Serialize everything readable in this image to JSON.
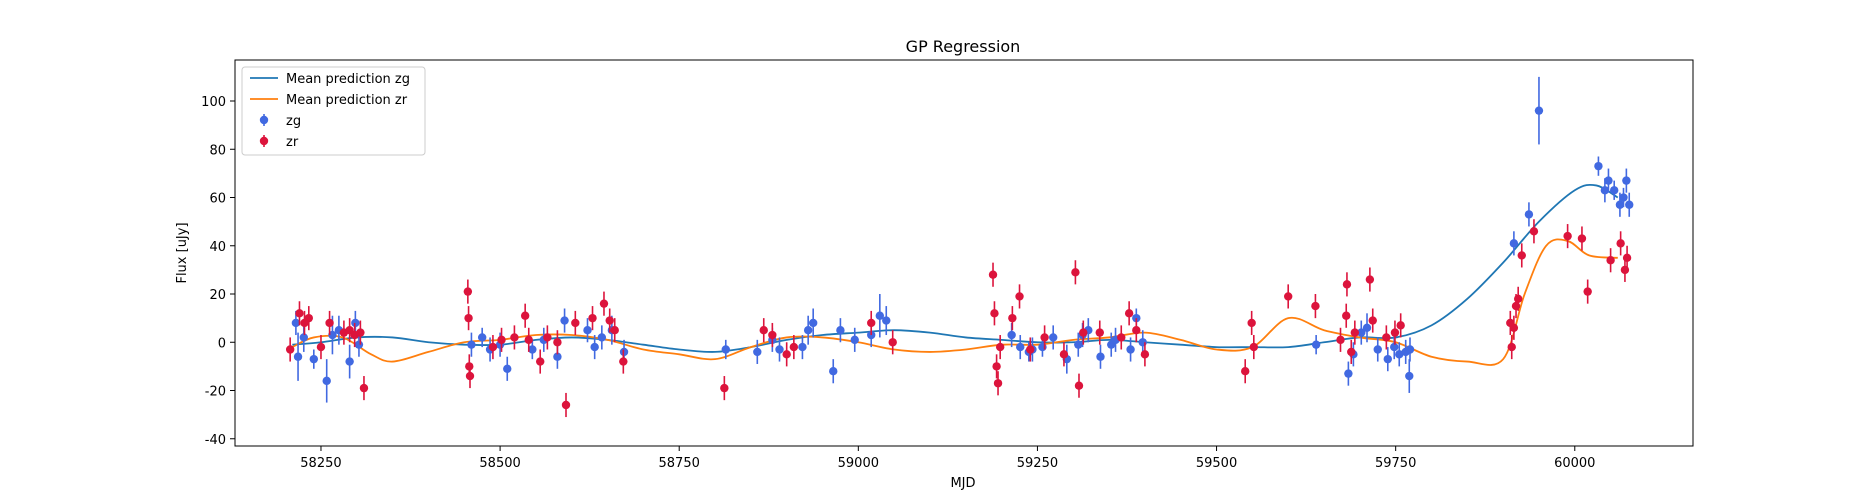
{
  "chart_data": {
    "type": "scatter",
    "title": "GP Regression",
    "xlabel": "MJD",
    "ylabel": "Flux [uJy]",
    "xlim": [
      58130,
      60165
    ],
    "ylim": [
      -43,
      117
    ],
    "xticks": [
      58250,
      58500,
      58750,
      59000,
      59250,
      59500,
      59750,
      60000
    ],
    "yticks": [
      -40,
      -20,
      0,
      20,
      40,
      60,
      80,
      100
    ],
    "grid": false,
    "legend": {
      "placement": "top-left",
      "entries": [
        {
          "label": "Mean prediction zg",
          "kind": "line",
          "color": "#1f77b4"
        },
        {
          "label": "Mean prediction zr",
          "kind": "line",
          "color": "#ff7f0e"
        },
        {
          "label": "zg",
          "kind": "errorbar",
          "color": "#4169e1"
        },
        {
          "label": "zr",
          "kind": "errorbar",
          "color": "#dc143c"
        }
      ]
    },
    "series": [
      {
        "name": "Mean prediction zg",
        "kind": "line",
        "color": "#1f77b4",
        "x": [
          58210,
          58250,
          58300,
          58350,
          58400,
          58450,
          58500,
          58550,
          58600,
          58650,
          58700,
          58750,
          58800,
          58850,
          58900,
          58950,
          59000,
          59050,
          59100,
          59150,
          59200,
          59250,
          59300,
          59350,
          59400,
          59450,
          59500,
          59550,
          59600,
          59650,
          59700,
          59750,
          59800,
          59850,
          59900,
          59950,
          60000,
          60030,
          60060
        ],
        "y": [
          -1,
          0,
          2,
          2,
          0,
          -1,
          -1,
          1,
          2,
          1,
          -1,
          -3,
          -4,
          -2,
          1,
          3,
          4,
          5,
          4,
          2,
          1,
          0,
          0,
          1,
          0,
          -1,
          -2,
          -2,
          -2,
          0,
          2,
          2,
          7,
          18,
          33,
          50,
          63,
          65,
          60
        ]
      },
      {
        "name": "Mean prediction zr",
        "kind": "line",
        "color": "#ff7f0e",
        "x": [
          58210,
          58240,
          58280,
          58320,
          58350,
          58400,
          58450,
          58500,
          58550,
          58600,
          58650,
          58700,
          58750,
          58800,
          58850,
          58900,
          58950,
          59000,
          59050,
          59100,
          59150,
          59200,
          59250,
          59300,
          59350,
          59400,
          59450,
          59500,
          59550,
          59600,
          59650,
          59700,
          59750,
          59800,
          59850,
          59900,
          59930,
          59960,
          59990,
          60020,
          60060
        ],
        "y": [
          -2,
          2,
          2,
          -5,
          -8,
          -4,
          0,
          1,
          3,
          3,
          1,
          -3,
          -5,
          -7,
          -2,
          2,
          2,
          0,
          -3,
          -4,
          -3,
          -1,
          -1,
          1,
          2,
          4,
          1,
          -3,
          -2,
          10,
          5,
          2,
          0,
          -6,
          -8,
          -7,
          20,
          40,
          42,
          36,
          35
        ]
      },
      {
        "name": "zg",
        "kind": "errorbar",
        "color": "#4169e1",
        "x": [
          58215,
          58218,
          58226,
          58240,
          58258,
          58266,
          58275,
          58290,
          58298,
          58303,
          58460,
          58475,
          58486,
          58500,
          58510,
          58545,
          58561,
          58580,
          58590,
          58622,
          58632,
          58642,
          58656,
          58673,
          58815,
          58859,
          58880,
          58890,
          58922,
          58930,
          58937,
          58965,
          58975,
          58995,
          59018,
          59030,
          59039,
          59214,
          59226,
          59238,
          59243,
          59257,
          59272,
          59291,
          59307,
          59313,
          59321,
          59338,
          59353,
          59359,
          59380,
          59388,
          59397,
          59639,
          59684,
          59691,
          59702,
          59710,
          59725,
          59739,
          59748,
          59755,
          59764,
          59769,
          59770,
          59915,
          59936,
          60033,
          60042,
          60047,
          60055,
          60063,
          60068,
          60072,
          60076,
          59950
        ],
        "y": [
          8,
          -6,
          2,
          -7,
          -16,
          3,
          5,
          -8,
          8,
          -1,
          -1,
          2,
          -3,
          -1,
          -11,
          -3,
          1,
          -6,
          9,
          5,
          -2,
          2,
          5,
          -4,
          -3,
          -4,
          1,
          -3,
          -2,
          5,
          8,
          -12,
          5,
          1,
          3,
          11,
          9,
          3,
          -2,
          -4,
          -3,
          -2,
          2,
          -7,
          -1,
          3,
          5,
          -6,
          -1,
          1,
          -3,
          10,
          0,
          -1,
          -13,
          -5,
          4,
          6,
          -3,
          -7,
          -2,
          -5,
          -4,
          -14,
          -3,
          41,
          53,
          73,
          63,
          67,
          63,
          57,
          60,
          67,
          57,
          96
        ],
        "err": [
          5,
          10,
          6,
          4,
          9,
          8,
          6,
          7,
          5,
          5,
          5,
          4,
          5,
          5,
          5,
          4,
          5,
          5,
          5,
          5,
          5,
          5,
          6,
          5,
          4,
          5,
          5,
          5,
          5,
          6,
          6,
          5,
          5,
          5,
          5,
          9,
          6,
          5,
          5,
          4,
          5,
          4,
          5,
          6,
          5,
          5,
          5,
          5,
          5,
          5,
          5,
          4,
          5,
          4,
          5,
          5,
          5,
          6,
          5,
          5,
          5,
          5,
          5,
          7,
          5,
          5,
          5,
          4,
          5,
          5,
          4,
          5,
          4,
          5,
          5,
          14
        ]
      },
      {
        "name": "zr",
        "kind": "errorbar",
        "color": "#dc143c",
        "x": [
          58207,
          58220,
          58227,
          58233,
          58250,
          58262,
          58282,
          58290,
          58297,
          58305,
          58310,
          58455,
          58456,
          58457,
          58458,
          58490,
          58502,
          58520,
          58535,
          58540,
          58556,
          58566,
          58580,
          58592,
          58605,
          58629,
          58645,
          58653,
          58660,
          58672,
          58813,
          58868,
          58880,
          58900,
          58910,
          59018,
          59048,
          59188,
          59190,
          59193,
          59195,
          59198,
          59215,
          59225,
          59240,
          59260,
          59287,
          59303,
          59308,
          59314,
          59337,
          59367,
          59378,
          59388,
          59400,
          59540,
          59549,
          59552,
          59600,
          59638,
          59673,
          59681,
          59682,
          59688,
          59693,
          59714,
          59718,
          59737,
          59749,
          59757,
          59910,
          59912,
          59915,
          59918,
          59921,
          59926,
          59943,
          59990,
          60010,
          60018,
          60050,
          60064,
          60070,
          60073
        ],
        "y": [
          -3,
          12,
          8,
          10,
          -2,
          8,
          4,
          5,
          3,
          4,
          -19,
          21,
          10,
          -10,
          -14,
          -2,
          1,
          2,
          11,
          1,
          -8,
          2,
          0,
          -26,
          8,
          10,
          16,
          9,
          5,
          -8,
          -19,
          5,
          3,
          -5,
          -2,
          8,
          0,
          28,
          12,
          -10,
          -17,
          -2,
          10,
          19,
          -3,
          2,
          -5,
          29,
          -18,
          4,
          4,
          2,
          12,
          5,
          -5,
          -12,
          8,
          -2,
          19,
          15,
          1,
          11,
          24,
          -4,
          4,
          26,
          9,
          2,
          4,
          7,
          8,
          -2,
          6,
          15,
          18,
          36,
          46,
          44,
          43,
          21,
          34,
          41,
          30,
          35
        ]
      }
    ]
  }
}
